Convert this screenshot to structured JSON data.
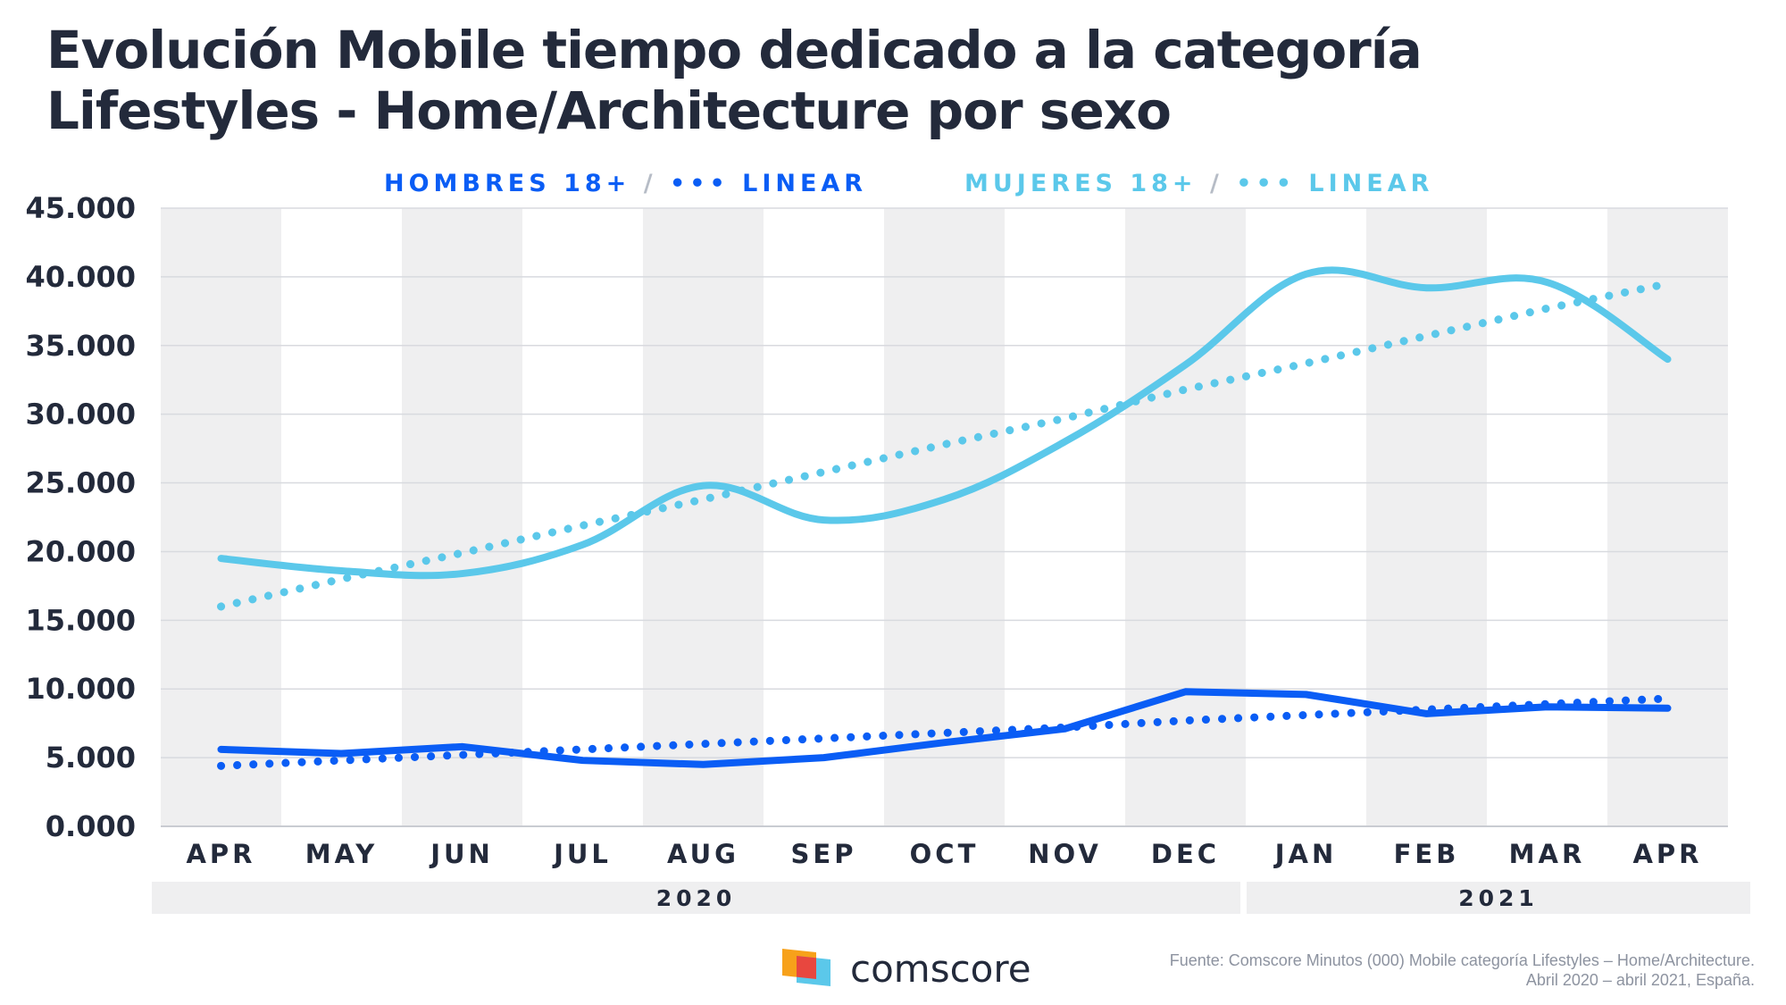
{
  "title_lines": [
    "Evolución Mobile tiempo dedicado a la categoría",
    "Lifestyles - Home/Architecture por sexo"
  ],
  "legend": [
    {
      "label": "HOMBRES 18+",
      "sep": "/",
      "dots": "•••",
      "linear": "LINEAR",
      "color": "#0a5df5"
    },
    {
      "label": "MUJERES 18+",
      "sep": "/",
      "dots": "•••",
      "linear": "LINEAR",
      "color": "#5bc8ea"
    }
  ],
  "legend_sep_color": "#b6bcc6",
  "brand": {
    "name": "comscore",
    "icon": "comscore-logo-icon"
  },
  "source_lines": [
    "Fuente: Comscore Minutos (000) Mobile categoría Lifestyles – Home/Architecture.",
    "Abril 2020 – abril 2021, España."
  ],
  "chart_data": {
    "type": "line",
    "categories": [
      "APR",
      "MAY",
      "JUN",
      "JUL",
      "AUG",
      "SEP",
      "OCT",
      "NOV",
      "DEC",
      "JAN",
      "FEB",
      "MAR",
      "APR"
    ],
    "year_groups": [
      {
        "label": "2020",
        "from": 0,
        "to": 8
      },
      {
        "label": "2021",
        "from": 9,
        "to": 12
      }
    ],
    "yticks": [
      "0.000",
      "5.000",
      "10.000",
      "15.000",
      "20.000",
      "25.000",
      "30.000",
      "35.000",
      "40.000",
      "45.000"
    ],
    "ylim": [
      0,
      45000
    ],
    "grid": true,
    "series": [
      {
        "name": "HOMBRES 18+",
        "style": "solid",
        "color": "#0a5df5",
        "values": [
          5600,
          5300,
          5800,
          4800,
          4500,
          5000,
          6100,
          7100,
          9800,
          9600,
          8200,
          8700,
          8600
        ]
      },
      {
        "name": "LINEAR",
        "of": "HOMBRES 18+",
        "style": "dotted",
        "color": "#0a5df5",
        "values": [
          4400,
          4800,
          5200,
          5600,
          6000,
          6400,
          6800,
          7200,
          7700,
          8100,
          8500,
          8900,
          9300
        ]
      },
      {
        "name": "MUJERES 18+",
        "style": "solid",
        "color": "#5bc8ea",
        "values": [
          19500,
          18600,
          18400,
          20500,
          24800,
          22300,
          23800,
          28000,
          33600,
          40200,
          39200,
          39600,
          34000
        ]
      },
      {
        "name": "LINEAR",
        "of": "MUJERES 18+",
        "style": "dotted",
        "color": "#5bc8ea",
        "values": [
          16000,
          18000,
          19900,
          21900,
          23800,
          25800,
          27800,
          29700,
          31800,
          33700,
          35700,
          37700,
          39500
        ]
      }
    ]
  }
}
